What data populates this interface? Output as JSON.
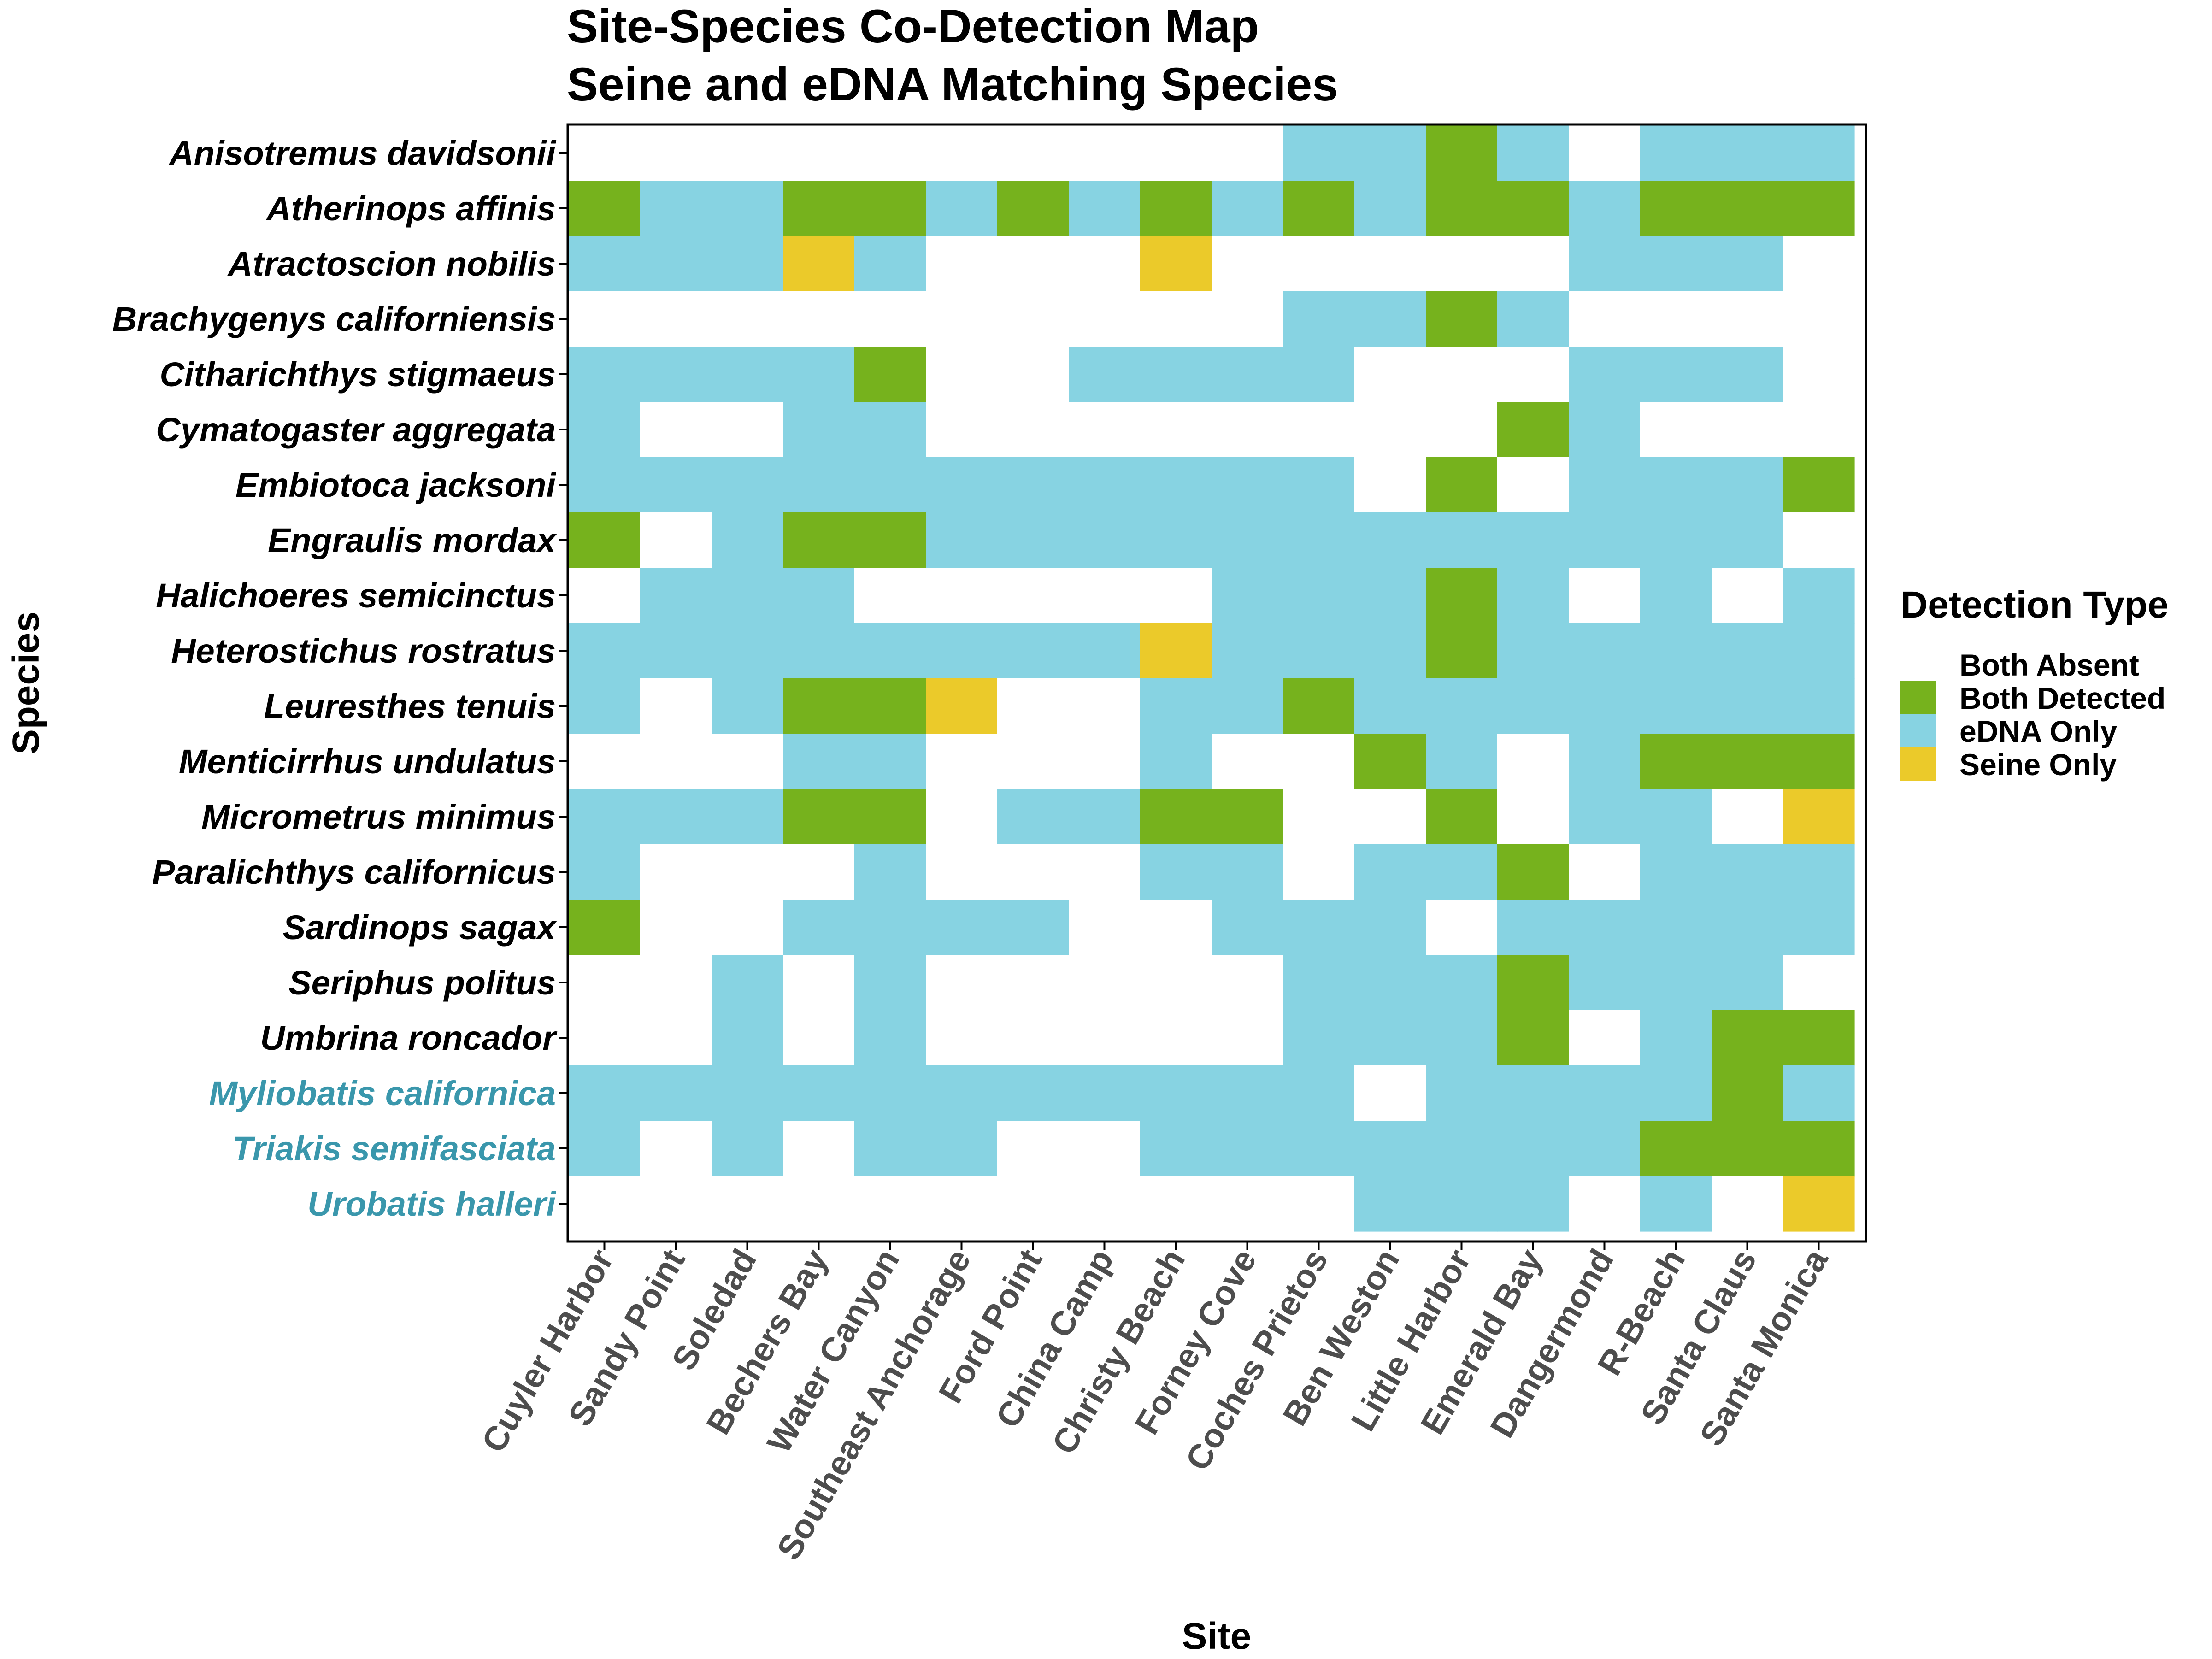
{
  "chart_data": {
    "type": "heatmap",
    "title": [
      "Site-Species Co-Detection Map",
      "Seine and eDNA Matching Species"
    ],
    "xlabel": "Site",
    "ylabel": "Species",
    "x": [
      "Cuyler Harbor",
      "Sandy Point",
      "Soledad",
      "Bechers Bay",
      "Water Canyon",
      "Southeast Anchorage",
      "Ford Point",
      "China Camp",
      "Christy Beach",
      "Forney Cove",
      "Coches Prietos",
      "Ben Weston",
      "Little Harbor",
      "Emerald Bay",
      "Dangermond",
      "R-Beach",
      "Santa Claus",
      "Santa Monica"
    ],
    "y": [
      "Anisotremus davidsonii",
      "Atherinops affinis",
      "Atractoscion nobilis",
      "Brachygenys californiensis",
      "Citharichthys stigmaeus",
      "Cymatogaster aggregata",
      "Embiotoca jacksoni",
      "Engraulis mordax",
      "Halichoeres semicinctus",
      "Heterostichus rostratus",
      "Leuresthes tenuis",
      "Menticirrhus undulatus",
      "Micrometrus minimus",
      "Paralichthys californicus",
      "Sardinops sagax",
      "Seriphus politus",
      "Umbrina roncador",
      "Myliobatis californica",
      "Triakis semifasciata",
      "Urobatis halleri"
    ],
    "highlight_species": [
      "Myliobatis californica",
      "Triakis semifasciata",
      "Urobatis halleri"
    ],
    "code_key": {
      "A": "Both Absent",
      "B": "Both Detected",
      "E": "eDNA Only",
      "S": "Seine Only"
    },
    "values": [
      [
        "A",
        "A",
        "A",
        "A",
        "A",
        "A",
        "A",
        "A",
        "A",
        "A",
        "E",
        "E",
        "B",
        "E",
        "A",
        "E",
        "E",
        "E"
      ],
      [
        "B",
        "E",
        "E",
        "B",
        "B",
        "E",
        "B",
        "E",
        "B",
        "E",
        "B",
        "E",
        "B",
        "B",
        "E",
        "B",
        "B",
        "B"
      ],
      [
        "E",
        "E",
        "E",
        "S",
        "E",
        "A",
        "A",
        "A",
        "S",
        "A",
        "A",
        "A",
        "A",
        "A",
        "E",
        "E",
        "E",
        "A"
      ],
      [
        "A",
        "A",
        "A",
        "A",
        "A",
        "A",
        "A",
        "A",
        "A",
        "A",
        "E",
        "E",
        "B",
        "E",
        "A",
        "A",
        "A",
        "A"
      ],
      [
        "E",
        "E",
        "E",
        "E",
        "B",
        "A",
        "A",
        "E",
        "E",
        "E",
        "E",
        "A",
        "A",
        "A",
        "E",
        "E",
        "E",
        "A"
      ],
      [
        "E",
        "A",
        "A",
        "E",
        "E",
        "A",
        "A",
        "A",
        "A",
        "A",
        "A",
        "A",
        "A",
        "B",
        "E",
        "A",
        "A",
        "A"
      ],
      [
        "E",
        "E",
        "E",
        "E",
        "E",
        "E",
        "E",
        "E",
        "E",
        "E",
        "E",
        "A",
        "B",
        "A",
        "E",
        "E",
        "E",
        "B"
      ],
      [
        "B",
        "A",
        "E",
        "B",
        "B",
        "E",
        "E",
        "E",
        "E",
        "E",
        "E",
        "E",
        "E",
        "E",
        "E",
        "E",
        "E",
        "A"
      ],
      [
        "A",
        "E",
        "E",
        "E",
        "A",
        "A",
        "A",
        "A",
        "A",
        "E",
        "E",
        "E",
        "B",
        "E",
        "A",
        "E",
        "A",
        "E"
      ],
      [
        "E",
        "E",
        "E",
        "E",
        "E",
        "E",
        "E",
        "E",
        "S",
        "E",
        "E",
        "E",
        "B",
        "E",
        "E",
        "E",
        "E",
        "E"
      ],
      [
        "E",
        "A",
        "E",
        "B",
        "B",
        "S",
        "A",
        "A",
        "E",
        "E",
        "B",
        "E",
        "E",
        "E",
        "E",
        "E",
        "E",
        "E"
      ],
      [
        "A",
        "A",
        "A",
        "E",
        "E",
        "A",
        "A",
        "A",
        "E",
        "A",
        "A",
        "B",
        "E",
        "A",
        "E",
        "B",
        "B",
        "B"
      ],
      [
        "E",
        "E",
        "E",
        "B",
        "B",
        "A",
        "E",
        "E",
        "B",
        "B",
        "A",
        "A",
        "B",
        "A",
        "E",
        "E",
        "A",
        "S"
      ],
      [
        "E",
        "A",
        "A",
        "A",
        "E",
        "A",
        "A",
        "A",
        "E",
        "E",
        "A",
        "E",
        "E",
        "B",
        "A",
        "E",
        "E",
        "E"
      ],
      [
        "B",
        "A",
        "A",
        "E",
        "E",
        "E",
        "E",
        "A",
        "A",
        "E",
        "E",
        "E",
        "A",
        "E",
        "E",
        "E",
        "E",
        "E"
      ],
      [
        "A",
        "A",
        "E",
        "A",
        "E",
        "A",
        "A",
        "A",
        "A",
        "A",
        "E",
        "E",
        "E",
        "B",
        "E",
        "E",
        "E",
        "A"
      ],
      [
        "A",
        "A",
        "E",
        "A",
        "E",
        "A",
        "A",
        "A",
        "A",
        "A",
        "E",
        "E",
        "E",
        "B",
        "A",
        "E",
        "B",
        "B"
      ],
      [
        "E",
        "E",
        "E",
        "E",
        "E",
        "E",
        "E",
        "E",
        "E",
        "E",
        "E",
        "A",
        "E",
        "E",
        "E",
        "E",
        "B",
        "E"
      ],
      [
        "E",
        "A",
        "E",
        "A",
        "E",
        "E",
        "A",
        "A",
        "E",
        "E",
        "E",
        "E",
        "E",
        "E",
        "E",
        "B",
        "B",
        "B"
      ],
      [
        "A",
        "A",
        "A",
        "A",
        "A",
        "A",
        "A",
        "A",
        "A",
        "A",
        "A",
        "E",
        "E",
        "E",
        "A",
        "E",
        "A",
        "S"
      ]
    ],
    "legend": {
      "title": "Detection Type",
      "placement": "right",
      "entries": [
        {
          "label": "Both Absent",
          "color": "#FFFFFF"
        },
        {
          "label": "Both Detected",
          "color": "#76B21D"
        },
        {
          "label": "eDNA Only",
          "color": "#87D3E2"
        },
        {
          "label": "Seine Only",
          "color": "#EBCA2A"
        }
      ]
    },
    "colors": {
      "species_text": "#000000",
      "highlight_text": "#3A97AC",
      "site_text": "#4D4D4D",
      "axis_line": "#000000"
    },
    "grid": false
  }
}
